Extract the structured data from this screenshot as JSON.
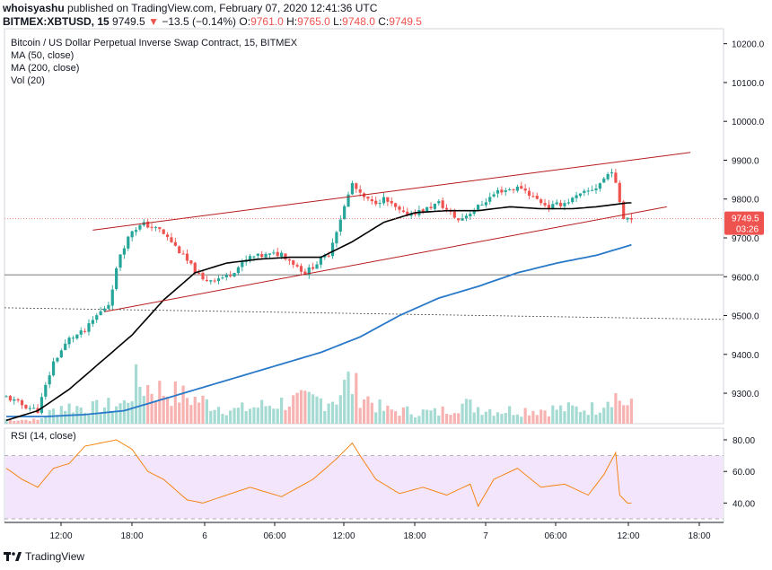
{
  "header": {
    "author": "whoisyashu",
    "published_text": "published on TradingView.com, February 07, 2020 12:41:36 UTC",
    "symbol": "BITMEX:XBTUSD, 15",
    "last": "9749.5",
    "change_arrow": "▼",
    "change": "−13.5 (−0.14%)",
    "o_label": "O:",
    "o_value": "9761.0",
    "h_label": "H:",
    "h_value": "9765.0",
    "l_label": "L:",
    "l_value": "9748.0",
    "c_label": "C:",
    "c_value": "9749.5"
  },
  "legend": {
    "title": "Bitcoin / US Dollar Perpetual Inverse Swap Contract, 15, BITMEX",
    "ma50": "MA (50, close)",
    "ma200": "MA (200, close)",
    "vol": "Vol (20)",
    "rsi": "RSI (14, close)"
  },
  "footer": {
    "brand": "TradingView",
    "logo_icon": "tradingview-logo-icon"
  },
  "colors": {
    "up": "#26a69a",
    "down": "#ef5350",
    "ma50": "#000000",
    "ma200": "#2979c9",
    "channel": "#b71c1c",
    "rsi_line": "#f57c00",
    "rsi_band": "#f3e5fb",
    "vol_up": "#a5dbd3",
    "vol_down": "#f7b3b1",
    "price_tag": "#ef5350",
    "grid": "#e8eaee"
  },
  "chart_data": {
    "type": "candlestick",
    "title": "Bitcoin / US Dollar Perpetual Inverse Swap Contract, 15, BITMEX",
    "y_axis": {
      "min": 9200,
      "max": 10220,
      "ticks": [
        "10200.0",
        "10100.0",
        "10000.0",
        "9900.0",
        "9800.0",
        "9700.0",
        "9600.0",
        "9500.0",
        "9400.0",
        "9300.0"
      ]
    },
    "x_axis_labels": [
      "12:00",
      "18:00",
      "6",
      "06:00",
      "12:00",
      "18:00",
      "7",
      "06:00",
      "12:00",
      "18:00"
    ],
    "price_series_keypoints": {
      "bar_index": [
        0,
        4,
        8,
        12,
        16,
        20,
        23,
        26,
        29,
        32,
        35,
        39,
        42,
        46,
        50,
        56,
        62,
        70,
        76,
        82,
        86,
        88,
        90,
        93,
        96,
        101,
        106,
        110,
        115,
        120,
        125,
        131,
        134,
        138,
        142,
        146,
        150,
        154,
        157,
        160
      ],
      "close": [
        9290,
        9270,
        9255,
        9380,
        9440,
        9460,
        9500,
        9530,
        9660,
        9720,
        9735,
        9720,
        9690,
        9640,
        9590,
        9600,
        9650,
        9660,
        9610,
        9660,
        9780,
        9840,
        9810,
        9790,
        9800,
        9760,
        9770,
        9790,
        9745,
        9780,
        9820,
        9830,
        9805,
        9780,
        9790,
        9810,
        9830,
        9875,
        9755,
        9749.5
      ]
    },
    "ma50_keypoints": {
      "bar_index": [
        0,
        8,
        16,
        24,
        32,
        40,
        48,
        56,
        64,
        72,
        80,
        88,
        96,
        104,
        112,
        120,
        128,
        136,
        144,
        150,
        158
      ],
      "value": [
        9230,
        9255,
        9310,
        9380,
        9450,
        9540,
        9610,
        9635,
        9645,
        9650,
        9650,
        9690,
        9740,
        9765,
        9770,
        9770,
        9780,
        9775,
        9775,
        9780,
        9790
      ]
    },
    "ma200_keypoints": {
      "bar_index": [
        0,
        10,
        20,
        30,
        40,
        50,
        60,
        70,
        80,
        90,
        100,
        110,
        120,
        130,
        140,
        150,
        160
      ],
      "value": [
        9240,
        9240,
        9245,
        9255,
        9285,
        9315,
        9345,
        9375,
        9405,
        9445,
        9500,
        9545,
        9575,
        9610,
        9635,
        9655,
        9685
      ]
    },
    "channel_lines": [
      {
        "name": "upper",
        "from": {
          "bar": 22,
          "price": 9720
        },
        "to": {
          "bar": 174,
          "price": 9920
        }
      },
      {
        "name": "lower",
        "from": {
          "bar": 25,
          "price": 9510
        },
        "to": {
          "bar": 168,
          "price": 9780
        }
      }
    ],
    "horizontal_levels": [
      {
        "name": "solid-level",
        "price": 9605
      },
      {
        "name": "dashed-level",
        "price": 9520,
        "end_price": 9490
      }
    ],
    "volume_keypoints": {
      "bar_index": [
        0,
        8,
        14,
        22,
        30,
        33,
        48,
        58,
        72,
        82,
        84,
        87,
        90,
        96,
        110,
        115,
        125,
        150,
        154,
        158
      ],
      "value": [
        10,
        8,
        40,
        35,
        45,
        90,
        55,
        30,
        50,
        55,
        60,
        95,
        70,
        30,
        25,
        45,
        30,
        35,
        70,
        40
      ]
    },
    "rsi": {
      "name": "RSI (14, close)",
      "ticks": [
        "80.00",
        "60.00",
        "40.00"
      ],
      "band": [
        30,
        70
      ],
      "keypoints": {
        "bar_index": [
          0,
          4,
          8,
          12,
          16,
          20,
          24,
          28,
          32,
          36,
          40,
          46,
          50,
          56,
          62,
          70,
          78,
          84,
          88,
          90,
          94,
          100,
          106,
          112,
          118,
          120,
          124,
          130,
          136,
          142,
          148,
          152,
          155,
          156,
          158
        ],
        "value": [
          62,
          55,
          50,
          62,
          65,
          76,
          78,
          80,
          74,
          60,
          55,
          42,
          40,
          45,
          50,
          44,
          55,
          68,
          78,
          70,
          55,
          46,
          50,
          45,
          52,
          38,
          55,
          62,
          50,
          52,
          45,
          58,
          72,
          45,
          40
        ]
      }
    },
    "last_price": "9749.5",
    "countdown": "03:26"
  }
}
